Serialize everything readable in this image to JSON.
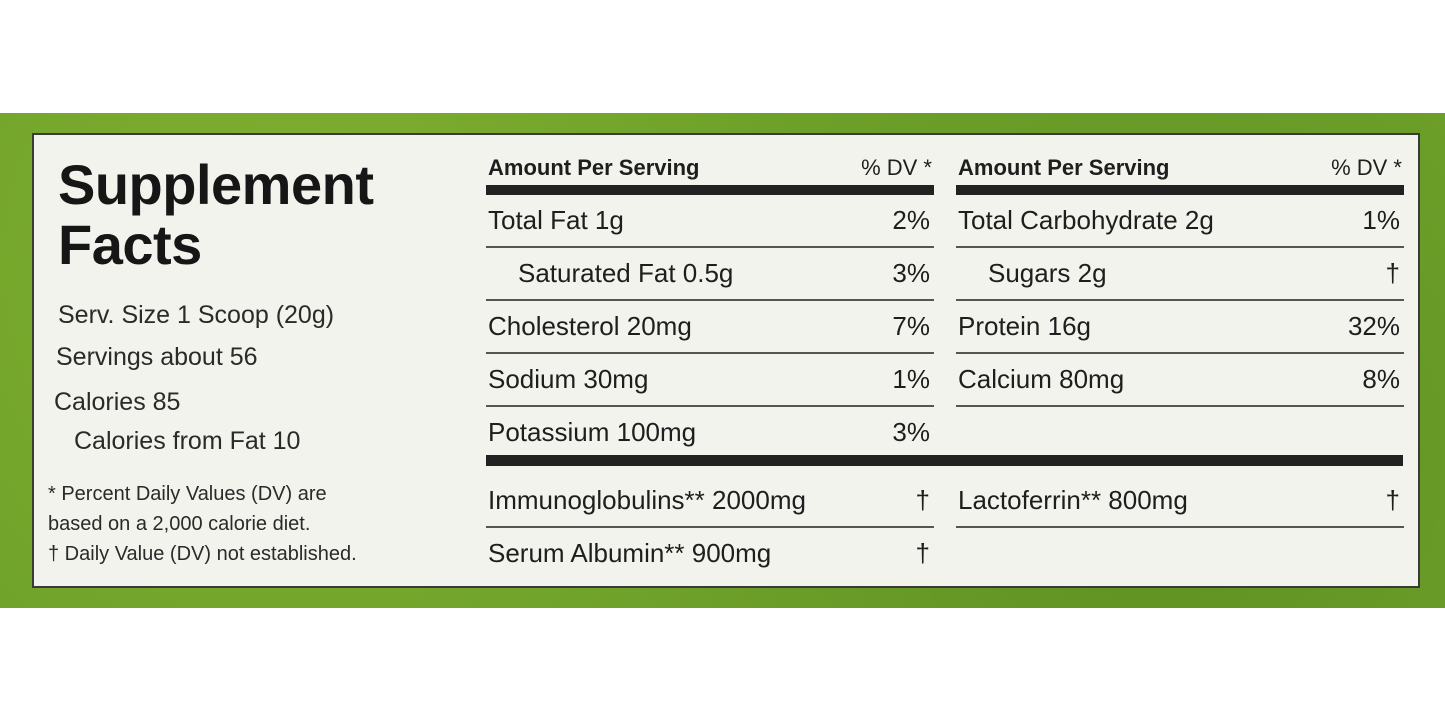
{
  "title": {
    "line1": "Supplement",
    "line2": "Facts"
  },
  "serving": {
    "size": "Serv. Size 1 Scoop (20g)",
    "servings": "Servings about 56",
    "calories": "Calories  85",
    "calories_from_fat": "Calories from Fat  10"
  },
  "notes": {
    "line1": "* Percent Daily Values (DV) are",
    "line2": "based on a 2,000 calorie diet.",
    "line3": "† Daily Value (DV) not established."
  },
  "header": {
    "amount": "Amount Per Serving",
    "dv": "% DV *"
  },
  "left_column": [
    {
      "name": "Total Fat  1g",
      "dv": "2%",
      "indent": false
    },
    {
      "name": "Saturated Fat  0.5g",
      "dv": "3%",
      "indent": true
    },
    {
      "name": "Cholesterol  20mg",
      "dv": "7%",
      "indent": false
    },
    {
      "name": "Sodium  30mg",
      "dv": "1%",
      "indent": false
    },
    {
      "name": "Potassium  100mg",
      "dv": "3%",
      "indent": false
    }
  ],
  "right_column": [
    {
      "name": "Total Carbohydrate  2g",
      "dv": "1%",
      "indent": false
    },
    {
      "name": "Sugars  2g",
      "dv": "†",
      "indent": true
    },
    {
      "name": "Protein  16g",
      "dv": "32%",
      "indent": false
    },
    {
      "name": "Calcium  80mg",
      "dv": "8%",
      "indent": false
    }
  ],
  "lower_left": [
    {
      "name": "Immunoglobulins**  2000mg",
      "dv": "†"
    },
    {
      "name": "Serum Albumin**  900mg",
      "dv": "†"
    }
  ],
  "lower_right": [
    {
      "name": "Lactoferrin**  800mg",
      "dv": "†"
    }
  ],
  "colors": {
    "band": "#6fa22a",
    "label_bg": "#f1f3ec",
    "ink": "#1e1e1e"
  }
}
